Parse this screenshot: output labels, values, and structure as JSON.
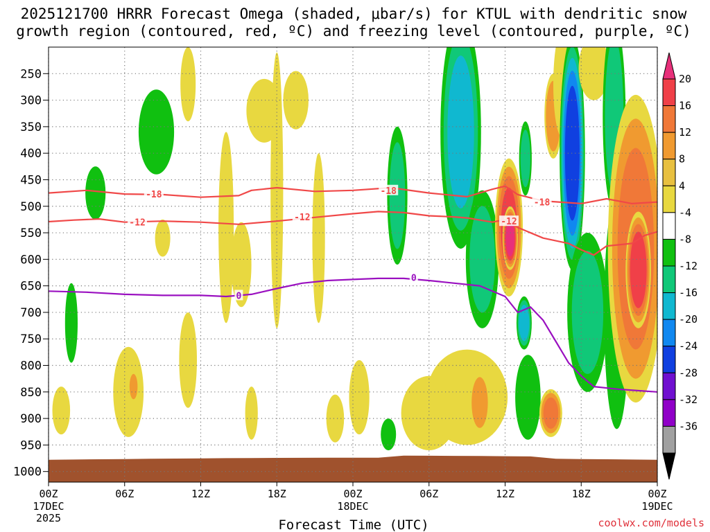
{
  "chart_data": {
    "type": "heatmap",
    "title_line1": "2025121700 HRRR Forecast Omega (shaded, μbar/s) for KTUL with dendritic snow",
    "title_line2": "growth region (contoured, red, ºC) and freezing level (contoured, purple, ºC)",
    "xlabel": "Forecast Time (UTC)",
    "ylabel": "",
    "credit": "coolwx.com/models",
    "x_hours": [
      0,
      6,
      12,
      18,
      24,
      30,
      36,
      42,
      48
    ],
    "x_tick_labels": [
      "00Z",
      "06Z",
      "12Z",
      "18Z",
      "00Z",
      "06Z",
      "12Z",
      "18Z",
      "00Z"
    ],
    "x_date_labels": [
      {
        "hour": 0,
        "lines": [
          "17DEC",
          "2025"
        ]
      },
      {
        "hour": 24,
        "lines": [
          "18DEC"
        ]
      },
      {
        "hour": 48,
        "lines": [
          "19DEC"
        ]
      }
    ],
    "y_levels": [
      250,
      300,
      350,
      400,
      450,
      500,
      550,
      600,
      650,
      700,
      750,
      800,
      850,
      900,
      950,
      1000
    ],
    "y_tick_labels": [
      "250",
      "300",
      "350",
      "400",
      "450",
      "500",
      "550",
      "600",
      "650",
      "700",
      "750",
      "800",
      "850",
      "900",
      "950",
      "1000"
    ],
    "y_range": [
      200,
      1020
    ],
    "colorbar": {
      "labels": [
        "20",
        "16",
        "12",
        "8",
        "4",
        "-4",
        "-8",
        "-12",
        "-16",
        "-20",
        "-24",
        "-28",
        "-32",
        "-36"
      ],
      "colors": [
        "#e8307a",
        "#f04048",
        "#f07838",
        "#f09a30",
        "#e8c040",
        "#e8d840",
        "#ffffff",
        "#10c010",
        "#10c878",
        "#10b8d0",
        "#1088f0",
        "#1040e0",
        "#7010d0",
        "#9000c8",
        "#a0a0a0",
        "#000000"
      ]
    },
    "omega_blobs": [
      {
        "t": 1.0,
        "p": 885,
        "dt": 0.7,
        "dp": 45,
        "v": 5
      },
      {
        "t": 1.8,
        "p": 720,
        "dt": 0.5,
        "dp": 75,
        "v": -6
      },
      {
        "t": 3.7,
        "p": 475,
        "dt": 0.8,
        "dp": 50,
        "v": -6
      },
      {
        "t": 6.3,
        "p": 850,
        "dt": 1.2,
        "dp": 85,
        "v": 5
      },
      {
        "t": 6.7,
        "p": 840,
        "dt": 0.4,
        "dp": 30,
        "v": 9
      },
      {
        "t": 8.5,
        "p": 360,
        "dt": 1.4,
        "dp": 80,
        "v": -6
      },
      {
        "t": 9.0,
        "p": 560,
        "dt": 0.6,
        "dp": 35,
        "v": 5
      },
      {
        "t": 11.0,
        "p": 270,
        "dt": 0.6,
        "dp": 70,
        "v": 5
      },
      {
        "t": 11.0,
        "p": 790,
        "dt": 0.7,
        "dp": 90,
        "v": 6
      },
      {
        "t": 14.0,
        "p": 540,
        "dt": 0.6,
        "dp": 180,
        "v": 5
      },
      {
        "t": 15.2,
        "p": 610,
        "dt": 0.8,
        "dp": 80,
        "v": 7
      },
      {
        "t": 16.0,
        "p": 890,
        "dt": 0.5,
        "dp": 50,
        "v": 5
      },
      {
        "t": 17.0,
        "p": 320,
        "dt": 1.4,
        "dp": 60,
        "v": 5
      },
      {
        "t": 18.0,
        "p": 470,
        "dt": 0.5,
        "dp": 260,
        "v": 5
      },
      {
        "t": 19.5,
        "p": 300,
        "dt": 1.0,
        "dp": 55,
        "v": 5
      },
      {
        "t": 21.3,
        "p": 560,
        "dt": 0.5,
        "dp": 160,
        "v": 5
      },
      {
        "t": 22.6,
        "p": 900,
        "dt": 0.7,
        "dp": 45,
        "v": 5
      },
      {
        "t": 24.5,
        "p": 860,
        "dt": 0.8,
        "dp": 70,
        "v": 5
      },
      {
        "t": 27.5,
        "p": 480,
        "dt": 0.8,
        "dp": 130,
        "v": -8
      },
      {
        "t": 26.8,
        "p": 930,
        "dt": 0.6,
        "dp": 30,
        "v": -6
      },
      {
        "t": 30.0,
        "p": 890,
        "dt": 2.2,
        "dp": 70,
        "v": 5
      },
      {
        "t": 32.5,
        "p": 360,
        "dt": 1.6,
        "dp": 220,
        "v": -12
      },
      {
        "t": 33.0,
        "p": 860,
        "dt": 3.2,
        "dp": 90,
        "v": 5
      },
      {
        "t": 34.0,
        "p": 870,
        "dt": 0.8,
        "dp": 60,
        "v": 9
      },
      {
        "t": 34.2,
        "p": 600,
        "dt": 1.3,
        "dp": 130,
        "v": -8
      },
      {
        "t": 36.3,
        "p": 540,
        "dt": 1.1,
        "dp": 130,
        "v": 16
      },
      {
        "t": 36.4,
        "p": 560,
        "dt": 0.6,
        "dp": 60,
        "v": 22
      },
      {
        "t": 37.6,
        "p": 410,
        "dt": 0.5,
        "dp": 70,
        "v": -8
      },
      {
        "t": 37.5,
        "p": 720,
        "dt": 0.6,
        "dp": 50,
        "v": -13
      },
      {
        "t": 37.8,
        "p": 860,
        "dt": 1.0,
        "dp": 80,
        "v": -7
      },
      {
        "t": 39.8,
        "p": 330,
        "dt": 0.7,
        "dp": 80,
        "v": 11
      },
      {
        "t": 39.6,
        "p": 890,
        "dt": 0.9,
        "dp": 45,
        "v": 12
      },
      {
        "t": 40.5,
        "p": 270,
        "dt": 0.7,
        "dp": 100,
        "v": 5
      },
      {
        "t": 41.3,
        "p": 400,
        "dt": 1.0,
        "dp": 220,
        "v": -22
      },
      {
        "t": 42.5,
        "p": 700,
        "dt": 1.6,
        "dp": 150,
        "v": -8
      },
      {
        "t": 43.0,
        "p": 240,
        "dt": 1.2,
        "dp": 60,
        "v": 5
      },
      {
        "t": 44.6,
        "p": 330,
        "dt": 0.9,
        "dp": 180,
        "v": -10
      },
      {
        "t": 44.8,
        "p": 700,
        "dt": 1.0,
        "dp": 220,
        "v": -7
      },
      {
        "t": 46.3,
        "p": 580,
        "dt": 2.2,
        "dp": 290,
        "v": 12
      },
      {
        "t": 46.5,
        "p": 620,
        "dt": 1.0,
        "dp": 110,
        "v": 19
      }
    ],
    "contours": [
      {
        "label": "-18",
        "color": "#f04848",
        "points": [
          [
            0,
            475
          ],
          [
            3,
            470
          ],
          [
            6,
            477
          ],
          [
            9,
            478
          ],
          [
            12,
            483
          ],
          [
            15,
            480
          ],
          [
            16,
            470
          ],
          [
            18,
            465
          ],
          [
            21,
            472
          ],
          [
            24,
            470
          ],
          [
            27,
            465
          ],
          [
            30,
            475
          ],
          [
            33,
            482
          ],
          [
            35,
            468
          ],
          [
            36,
            462
          ],
          [
            37,
            478
          ],
          [
            39,
            490
          ],
          [
            42,
            495
          ],
          [
            44,
            486
          ],
          [
            46,
            495
          ],
          [
            48,
            492
          ]
        ]
      },
      {
        "label": "-12",
        "color": "#f04848",
        "points": [
          [
            0,
            529
          ],
          [
            2,
            526
          ],
          [
            4,
            524
          ],
          [
            6,
            530
          ],
          [
            9,
            528
          ],
          [
            12,
            530
          ],
          [
            15,
            534
          ],
          [
            18,
            528
          ],
          [
            21,
            521
          ],
          [
            24,
            514
          ],
          [
            26,
            510
          ],
          [
            28,
            512
          ],
          [
            30,
            518
          ],
          [
            32,
            520
          ],
          [
            33,
            522
          ],
          [
            35,
            530
          ],
          [
            36,
            525
          ],
          [
            37,
            540
          ],
          [
            39,
            560
          ],
          [
            41,
            570
          ],
          [
            42,
            582
          ],
          [
            43,
            592
          ],
          [
            44,
            575
          ],
          [
            46,
            570
          ],
          [
            47,
            555
          ],
          [
            48,
            548
          ]
        ]
      },
      {
        "label": "0",
        "color": "#9a10c0",
        "points": [
          [
            0,
            660
          ],
          [
            3,
            662
          ],
          [
            6,
            666
          ],
          [
            9,
            668
          ],
          [
            12,
            668
          ],
          [
            14,
            670
          ],
          [
            16,
            666
          ],
          [
            18,
            655
          ],
          [
            20,
            645
          ],
          [
            22,
            640
          ],
          [
            24,
            638
          ],
          [
            26,
            636
          ],
          [
            28,
            636
          ],
          [
            30,
            640
          ],
          [
            32,
            645
          ],
          [
            34,
            650
          ],
          [
            36,
            670
          ],
          [
            37,
            700
          ],
          [
            38,
            690
          ],
          [
            39,
            715
          ],
          [
            40,
            755
          ],
          [
            41,
            795
          ],
          [
            42,
            820
          ],
          [
            43,
            840
          ],
          [
            45,
            845
          ],
          [
            48,
            850
          ]
        ]
      }
    ],
    "contour_label_positions": [
      {
        "label": "-18",
        "t": 8.3,
        "p": 477
      },
      {
        "label": "-18",
        "t": 26.8,
        "p": 470
      },
      {
        "label": "-18",
        "t": 38.9,
        "p": 492
      },
      {
        "label": "-12",
        "t": 7.0,
        "p": 530
      },
      {
        "label": "-12",
        "t": 20.0,
        "p": 520
      },
      {
        "label": "-12",
        "t": 36.3,
        "p": 528
      },
      {
        "label": "0",
        "t": 15.0,
        "p": 668
      },
      {
        "label": "0",
        "t": 28.8,
        "p": 634
      }
    ]
  }
}
